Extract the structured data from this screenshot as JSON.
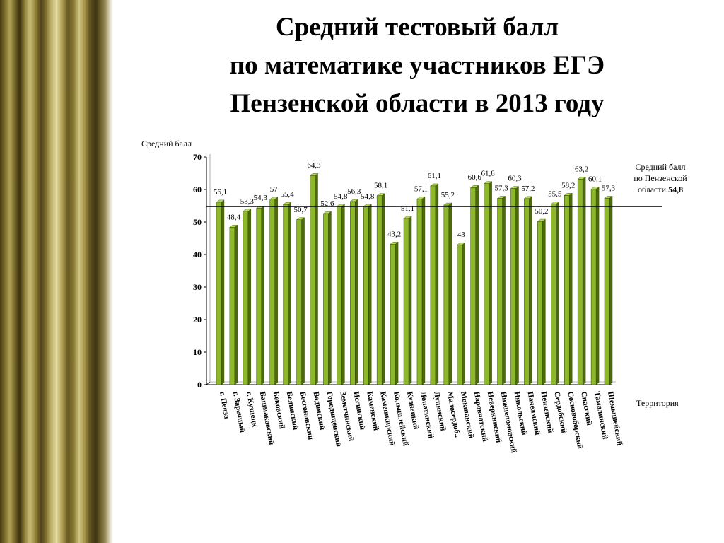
{
  "title_lines": [
    "Средний тестовый балл",
    "по математике участников ЕГЭ",
    "Пензенской области в 2013 году"
  ],
  "average_note": {
    "line1": "Средний балл",
    "line2": "по Пензенской",
    "line3_prefix": "области",
    "value_label": "54,8"
  },
  "chart_data": {
    "type": "bar",
    "ylabel": "Средний балл",
    "xlabel": "Территория",
    "ylim": [
      0,
      70
    ],
    "yticks": [
      0,
      10,
      20,
      30,
      40,
      50,
      60,
      70
    ],
    "reference_line": 54.8,
    "categories": [
      "г. Пенза",
      "г. Заречный",
      "г. Кузнецк",
      "Башмаковский",
      "Бековский",
      "Белинский",
      "Бессоновский",
      "Вадинский",
      "Городищенский",
      "Земетчинский",
      "Иссинский",
      "Каменский",
      "Камешкирский",
      "Колышлейский",
      "Кузнецкий",
      "Лопатинский",
      "Лунинский",
      "Малосердоб..",
      "Мокшанский",
      "Наровчатский",
      "Неверкинский",
      "Нижнеломовский",
      "Никольский",
      "Пачелмский",
      "Пензенский",
      "Сердобский",
      "Сосновоборский",
      "Спасский",
      "Тамалинский",
      "Шемышейский"
    ],
    "values": [
      56.1,
      48.4,
      53.3,
      54.3,
      57,
      55.4,
      50.7,
      64.3,
      52.6,
      54.8,
      56.3,
      54.8,
      58.1,
      43.2,
      51.1,
      57.1,
      61.1,
      55.2,
      43,
      60.6,
      61.8,
      57.3,
      60.3,
      57.2,
      50.2,
      55.5,
      58.2,
      63.2,
      60.1,
      57.3
    ],
    "value_labels": [
      "56,1",
      "48,4",
      "53,3",
      "54,3",
      "57",
      "55,4",
      "50,7",
      "64,3",
      "52,6",
      "54,8",
      "56,3",
      "54,8",
      "58,1",
      "43,2",
      "51,1",
      "57,1",
      "61,1",
      "55,2",
      "43",
      "60,6",
      "61,8",
      "57,3",
      "60,3",
      "57,2",
      "50,2",
      "55,5",
      "58,2",
      "63,2",
      "60,1",
      "57,3"
    ],
    "grid": false,
    "colors": {
      "bar": "#8db82a",
      "bar_side": "#4c6a0c",
      "bar_top": "#b9dc55"
    }
  }
}
